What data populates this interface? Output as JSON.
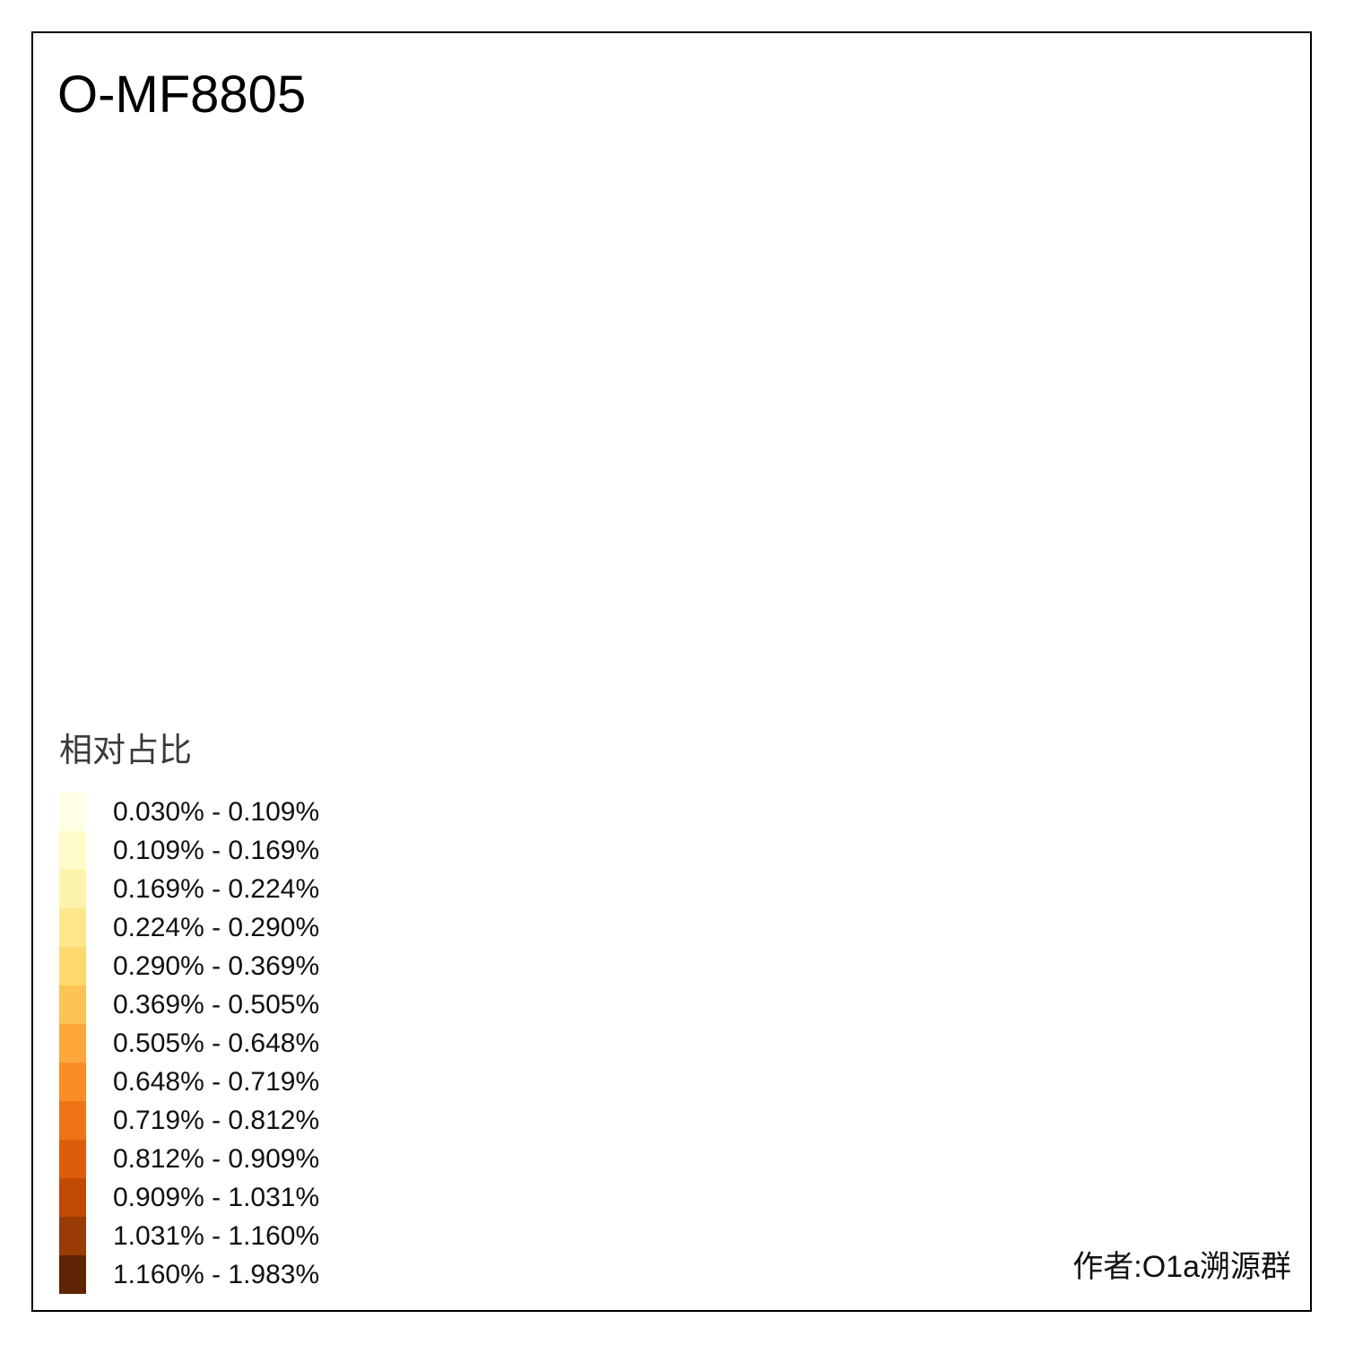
{
  "title": "O-MF8805",
  "footer": {
    "author": "作者:O1a溯源群"
  },
  "legend": {
    "title": "相对占比",
    "items": [
      {
        "label": "0.030% - 0.109%",
        "color": "#FFFFE5"
      },
      {
        "label": "0.109% - 0.169%",
        "color": "#FFFAC9"
      },
      {
        "label": "0.169% - 0.224%",
        "color": "#FEF3AB"
      },
      {
        "label": "0.224% - 0.290%",
        "color": "#FEE78C"
      },
      {
        "label": "0.290% - 0.369%",
        "color": "#FED86E"
      },
      {
        "label": "0.369% - 0.505%",
        "color": "#FEC355"
      },
      {
        "label": "0.505% - 0.648%",
        "color": "#FEA83C"
      },
      {
        "label": "0.648% - 0.719%",
        "color": "#FB8D27"
      },
      {
        "label": "0.719% - 0.812%",
        "color": "#F07318"
      },
      {
        "label": "0.812% - 0.909%",
        "color": "#DE5D0B"
      },
      {
        "label": "0.909% - 1.031%",
        "color": "#C04A04"
      },
      {
        "label": "1.031% - 1.160%",
        "color": "#9A3A04"
      },
      {
        "label": "1.160% - 1.983%",
        "color": "#5F2305"
      }
    ]
  },
  "map": {
    "land_color": "#D3D3D3",
    "outline_color": "#4d4d4d",
    "province_border_color": "#7d7d7d",
    "region_border_color": "#8a8a8a",
    "regions": [
      [
        1205,
        328,
        36,
        17,
        4
      ],
      [
        1253,
        366,
        27,
        20,
        0
      ],
      [
        1160,
        440,
        13,
        10,
        6
      ],
      [
        1037,
        421,
        22,
        14,
        2
      ],
      [
        1063,
        408,
        18,
        10,
        1
      ],
      [
        1018,
        455,
        13,
        12,
        0
      ],
      [
        1046,
        468,
        14,
        12,
        1
      ],
      [
        979,
        462,
        17,
        10,
        3
      ],
      [
        930,
        508,
        16,
        12,
        0
      ],
      [
        1008,
        518,
        14,
        12,
        1
      ],
      [
        1069,
        514,
        10,
        10,
        6
      ],
      [
        1099,
        524,
        10,
        8,
        3
      ],
      [
        1013,
        548,
        16,
        12,
        0
      ],
      [
        1043,
        562,
        14,
        10,
        1
      ],
      [
        948,
        588,
        12,
        10,
        0
      ],
      [
        1020,
        582,
        12,
        10,
        1
      ],
      [
        716,
        502,
        15,
        29,
        6
      ],
      [
        786,
        654,
        18,
        14,
        6
      ],
      [
        838,
        664,
        20,
        12,
        4
      ],
      [
        812,
        680,
        14,
        10,
        3
      ],
      [
        768,
        692,
        16,
        12,
        5
      ],
      [
        744,
        680,
        12,
        10,
        2
      ],
      [
        870,
        660,
        12,
        10,
        5
      ],
      [
        905,
        668,
        14,
        10,
        0
      ],
      [
        938,
        650,
        16,
        12,
        2
      ],
      [
        966,
        642,
        16,
        10,
        3
      ],
      [
        1000,
        650,
        18,
        12,
        4
      ],
      [
        1035,
        645,
        16,
        10,
        1
      ],
      [
        1068,
        628,
        14,
        13,
        6
      ],
      [
        1105,
        622,
        12,
        14,
        6
      ],
      [
        1108,
        650,
        10,
        10,
        2
      ],
      [
        940,
        695,
        16,
        10,
        0
      ],
      [
        936,
        701,
        5,
        5,
        11
      ],
      [
        970,
        688,
        14,
        10,
        4
      ],
      [
        992,
        700,
        12,
        10,
        6
      ],
      [
        1012,
        690,
        12,
        8,
        1
      ],
      [
        1040,
        700,
        14,
        10,
        2
      ],
      [
        1062,
        706,
        12,
        10,
        4
      ],
      [
        746,
        686,
        16,
        12,
        4
      ],
      [
        735,
        708,
        14,
        12,
        5
      ],
      [
        758,
        717,
        10,
        9,
        12
      ],
      [
        788,
        712,
        16,
        12,
        0
      ],
      [
        777,
        740,
        16,
        12,
        6
      ],
      [
        800,
        757,
        20,
        15,
        7
      ],
      [
        824,
        764,
        16,
        12,
        7
      ],
      [
        845,
        676,
        12,
        10,
        5
      ],
      [
        850,
        700,
        12,
        10,
        3
      ],
      [
        985,
        748,
        16,
        10,
        3
      ],
      [
        1013,
        744,
        14,
        10,
        2
      ],
      [
        1028,
        760,
        14,
        10,
        6
      ],
      [
        955,
        786,
        13,
        25,
        9
      ],
      [
        983,
        766,
        10,
        9,
        9
      ],
      [
        1016,
        790,
        16,
        12,
        7
      ],
      [
        1040,
        810,
        16,
        12,
        7
      ],
      [
        1058,
        832,
        14,
        10,
        6
      ],
      [
        1082,
        792,
        12,
        10,
        4
      ],
      [
        1096,
        764,
        12,
        10,
        5
      ],
      [
        1078,
        756,
        10,
        8,
        3
      ],
      [
        963,
        845,
        23,
        17,
        12
      ],
      [
        992,
        857,
        12,
        10,
        9
      ],
      [
        1008,
        845,
        12,
        10,
        8
      ],
      [
        930,
        856,
        14,
        10,
        4
      ],
      [
        900,
        880,
        16,
        12,
        3
      ],
      [
        856,
        900,
        16,
        12,
        5
      ],
      [
        882,
        916,
        12,
        10,
        6
      ],
      [
        828,
        878,
        16,
        10,
        2
      ],
      [
        935,
        880,
        12,
        8,
        6
      ],
      [
        1002,
        864,
        10,
        8,
        5
      ],
      [
        668,
        902,
        27,
        23,
        9
      ],
      [
        714,
        830,
        12,
        19,
        4
      ],
      [
        882,
        987,
        31,
        25,
        4,
        1
      ],
      [
        1125,
        882,
        23,
        53,
        10,
        1,
        18
      ],
      [
        974,
        1287,
        7,
        5,
        3,
        1
      ]
    ]
  }
}
